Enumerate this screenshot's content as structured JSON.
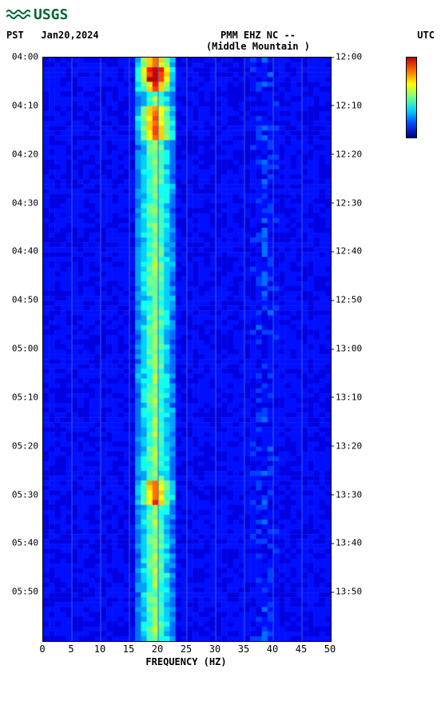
{
  "logo_text": "USGS",
  "header": {
    "left_tz": "PST",
    "date": "Jan20,2024",
    "title_line1": "PMM EHZ NC --",
    "title_line2": "(Middle Mountain )",
    "right_tz": "UTC"
  },
  "spectrogram": {
    "type": "spectrogram",
    "xlabel": "FREQUENCY (HZ)",
    "xlim": [
      0,
      50
    ],
    "xtick_step": 5,
    "xticks": [
      0,
      5,
      10,
      15,
      20,
      25,
      30,
      35,
      40,
      45,
      50
    ],
    "ylim_minutes": [
      0,
      120
    ],
    "left_time_labels": [
      "04:00",
      "04:10",
      "04:20",
      "04:30",
      "04:40",
      "04:50",
      "05:00",
      "05:10",
      "05:20",
      "05:30",
      "05:40",
      "05:50"
    ],
    "right_time_labels": [
      "12:00",
      "12:10",
      "12:20",
      "12:30",
      "12:40",
      "12:50",
      "13:00",
      "13:10",
      "13:20",
      "13:30",
      "13:40",
      "13:50"
    ],
    "time_tick_step_min": 10,
    "n_freq_bins": 50,
    "n_time_rows": 120,
    "colormap": [
      "#00007f",
      "#0000b0",
      "#0000e0",
      "#0010ff",
      "#0040ff",
      "#0070ff",
      "#00a0ff",
      "#00d0ff",
      "#10ffef",
      "#40ffbf",
      "#70ff8f",
      "#a0ff5f",
      "#d0ff2f",
      "#ffff00",
      "#ffcf00",
      "#ff9f00",
      "#ff6f00",
      "#ff3f00",
      "#ff0f00",
      "#bf0000"
    ],
    "background_index": 2,
    "grid_color": "#4060d0",
    "peak_freq_center": 19,
    "peak_freq_width": 4,
    "peak_base_intensity": 7,
    "hot_rows": [
      0,
      1,
      2,
      3,
      4,
      5,
      6,
      10,
      11,
      12,
      13,
      14,
      15,
      16,
      87,
      88,
      89,
      90,
      91
    ],
    "hot_intensity_boost": 6,
    "veryhot_rows": [
      2,
      3,
      4
    ],
    "veryhot_intensity_boost": 5,
    "secondary_band_freq": 38,
    "secondary_band_intensity": 4
  },
  "colorbar": {
    "colors": [
      "#bf0000",
      "#ff6f00",
      "#ffff00",
      "#70ff8f",
      "#00d0ff",
      "#0040ff",
      "#00007f"
    ]
  }
}
